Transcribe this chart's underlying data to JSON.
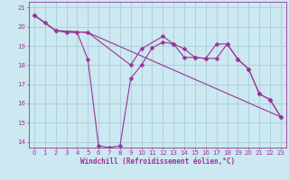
{
  "background_color": "#cce8f0",
  "grid_color": "#aaccd8",
  "line_color": "#993399",
  "spine_color": "#993399",
  "xlim": [
    -0.5,
    23.5
  ],
  "ylim": [
    13.7,
    21.3
  ],
  "xticks": [
    0,
    1,
    2,
    3,
    4,
    5,
    6,
    7,
    8,
    9,
    10,
    11,
    12,
    13,
    14,
    15,
    16,
    17,
    18,
    19,
    20,
    21,
    22,
    23
  ],
  "yticks": [
    14,
    15,
    16,
    17,
    18,
    19,
    20,
    21
  ],
  "xlabel": "Windchill (Refroidissement éolien,°C)",
  "tick_color": "#993399",
  "curve1_x": [
    0,
    1,
    2,
    3,
    4,
    5,
    6,
    7,
    8,
    9,
    10,
    11,
    12,
    13,
    14,
    15,
    16,
    17,
    18,
    19,
    20,
    21,
    22,
    23
  ],
  "curve1_y": [
    20.6,
    20.2,
    19.8,
    19.7,
    19.7,
    18.3,
    13.8,
    13.7,
    13.8,
    17.3,
    18.0,
    18.9,
    19.2,
    19.1,
    18.4,
    18.4,
    18.35,
    19.1,
    19.1,
    18.3,
    17.8,
    16.5,
    16.2,
    15.3
  ],
  "curve2_x": [
    0,
    2,
    5,
    9,
    10,
    12,
    13,
    14,
    15,
    16,
    17,
    18,
    19,
    20,
    21,
    22,
    23
  ],
  "curve2_y": [
    20.6,
    19.8,
    19.7,
    18.0,
    18.85,
    19.5,
    19.1,
    18.85,
    18.4,
    18.35,
    18.35,
    19.1,
    18.3,
    17.8,
    16.5,
    16.2,
    15.3
  ],
  "curve3_x": [
    0,
    2,
    5,
    23
  ],
  "curve3_y": [
    20.6,
    19.8,
    19.7,
    15.3
  ],
  "marker_size": 2.5,
  "linewidth": 0.8,
  "tick_fontsize": 5.0,
  "xlabel_fontsize": 5.5
}
